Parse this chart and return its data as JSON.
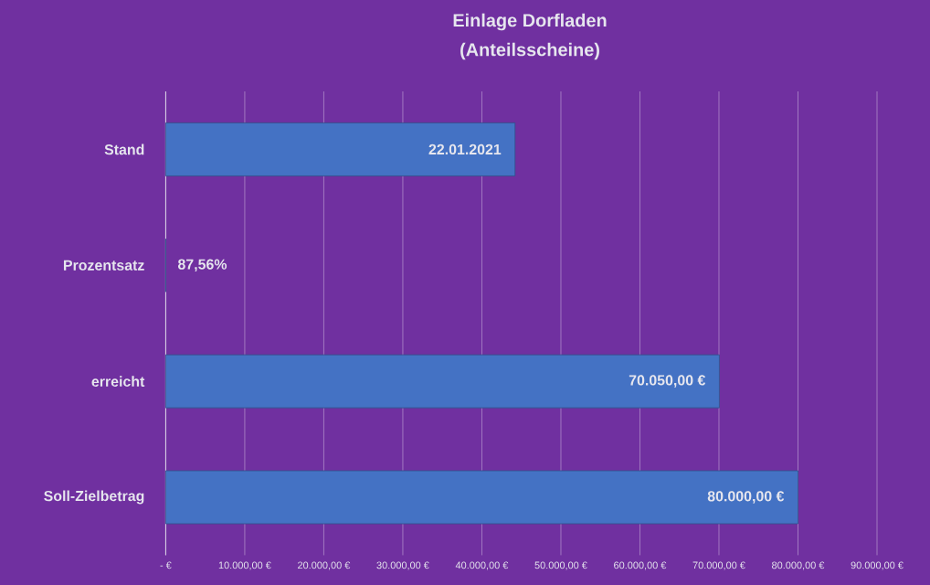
{
  "chart_data": {
    "type": "bar",
    "orientation": "horizontal",
    "title": "Einlage Dorfladen",
    "subtitle": "(Anteilsscheine)",
    "categories": [
      "Stand",
      "Prozentsatz",
      "erreicht",
      "Soll-Zielbetrag"
    ],
    "values": [
      44200,
      0.8756,
      70050,
      80000
    ],
    "value_labels": [
      "22.01.2021",
      "87,56%",
      "70.050,00 €",
      "80.000,00 €"
    ],
    "color": "#4472c4",
    "xlim": [
      0,
      90000
    ],
    "xticks": [
      {
        "value": 0,
        "label": "- €"
      },
      {
        "value": 10000,
        "label": "10.000,00 €"
      },
      {
        "value": 20000,
        "label": "20.000,00 €"
      },
      {
        "value": 30000,
        "label": "30.000,00 €"
      },
      {
        "value": 40000,
        "label": "40.000,00 €"
      },
      {
        "value": 50000,
        "label": "50.000,00 €"
      },
      {
        "value": 60000,
        "label": "60.000,00 €"
      },
      {
        "value": 70000,
        "label": "70.000,00 €"
      },
      {
        "value": 80000,
        "label": "80.000,00 €"
      },
      {
        "value": 90000,
        "label": "90.000,00 €"
      }
    ],
    "grid": "x"
  }
}
